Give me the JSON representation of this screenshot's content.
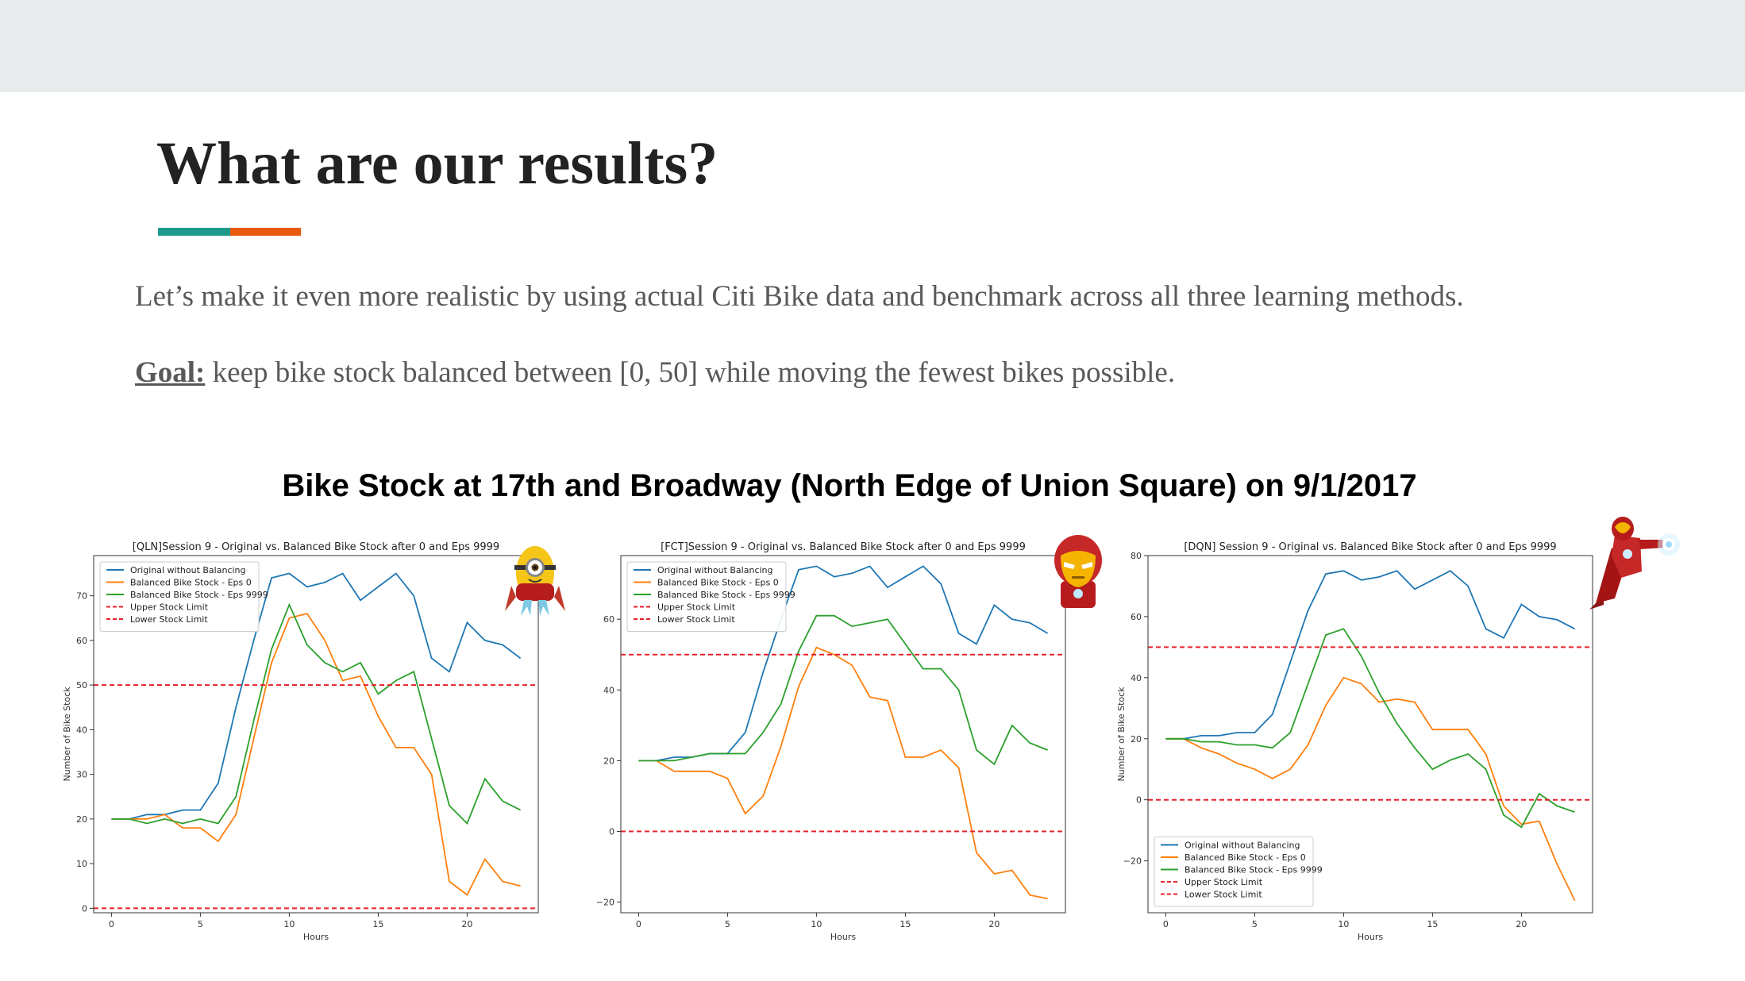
{
  "slide": {
    "title": "What are our results?",
    "intro": "Let’s make it even more realistic by using actual Citi Bike data and benchmark across all three learning methods.",
    "goal_label": "Goal:",
    "goal_text": " keep bike stock balanced between [0, 50] while moving the fewest bikes possible.",
    "chart_heading": "Bike Stock at 17th and Broadway (North Edge of Union Square) on 9/1/2017",
    "accent_colors": [
      "#1c9a8c",
      "#e8590c"
    ]
  },
  "mascots": [
    "minion-icon",
    "iron-man-head-icon",
    "iron-man-flying-icon"
  ],
  "chart_data": [
    {
      "type": "line",
      "title": "[QLN]Session 9 - Original vs. Balanced Bike Stock after 0 and Eps 9999",
      "xlabel": "Hours",
      "ylabel": "Number of Bike Stock",
      "xlim": [
        -1,
        24
      ],
      "ylim": [
        -1,
        79
      ],
      "xticks": [
        0,
        5,
        10,
        15,
        20
      ],
      "yticks": [
        0,
        10,
        20,
        30,
        40,
        50,
        60,
        70
      ],
      "legend": "upper-left",
      "x": [
        0,
        1,
        2,
        3,
        4,
        5,
        6,
        7,
        8,
        9,
        10,
        11,
        12,
        13,
        14,
        15,
        16,
        17,
        18,
        19,
        20,
        21,
        22,
        23
      ],
      "series": [
        {
          "name": "Original without Balancing",
          "color": "#1f77b4",
          "style": "solid",
          "values": [
            20,
            20,
            21,
            21,
            22,
            22,
            28,
            45,
            60,
            74,
            75,
            72,
            73,
            75,
            69,
            72,
            75,
            70,
            56,
            53,
            64,
            60,
            59,
            56
          ]
        },
        {
          "name": "Balanced Bike Stock - Eps 0",
          "color": "#ff7f0e",
          "style": "solid",
          "values": [
            20,
            20,
            20,
            21,
            18,
            18,
            15,
            21,
            38,
            55,
            65,
            66,
            60,
            51,
            52,
            43,
            36,
            36,
            30,
            6,
            3,
            11,
            6,
            5
          ]
        },
        {
          "name": "Balanced Bike Stock - Eps 9999",
          "color": "#2ca02c",
          "style": "solid",
          "values": [
            20,
            20,
            19,
            20,
            19,
            20,
            19,
            25,
            42,
            58,
            68,
            59,
            55,
            53,
            55,
            48,
            51,
            53,
            38,
            23,
            19,
            29,
            24,
            22
          ]
        },
        {
          "name": "Upper Stock Limit",
          "color": "#e8202a",
          "style": "dashed",
          "hline": 50
        },
        {
          "name": "Lower Stock Limit",
          "color": "#e8202a",
          "style": "dashed",
          "hline": 0
        }
      ]
    },
    {
      "type": "line",
      "title": "[FCT]Session 9 - Original vs. Balanced Bike Stock after 0 and Eps 9999",
      "xlabel": "Hours",
      "ylabel": "",
      "xlim": [
        -1,
        24
      ],
      "ylim": [
        -23,
        78
      ],
      "xticks": [
        0,
        5,
        10,
        15,
        20
      ],
      "yticks": [
        -20,
        0,
        20,
        40,
        60
      ],
      "legend": "upper-left",
      "x": [
        0,
        1,
        2,
        3,
        4,
        5,
        6,
        7,
        8,
        9,
        10,
        11,
        12,
        13,
        14,
        15,
        16,
        17,
        18,
        19,
        20,
        21,
        22,
        23
      ],
      "series": [
        {
          "name": "Original without Balancing",
          "color": "#1f77b4",
          "style": "solid",
          "values": [
            20,
            20,
            21,
            21,
            22,
            22,
            28,
            45,
            60,
            74,
            75,
            72,
            73,
            75,
            69,
            72,
            75,
            70,
            56,
            53,
            64,
            60,
            59,
            56
          ]
        },
        {
          "name": "Balanced Bike Stock - Eps 0",
          "color": "#ff7f0e",
          "style": "solid",
          "values": [
            20,
            20,
            17,
            17,
            17,
            15,
            5,
            10,
            24,
            41,
            52,
            50,
            47,
            38,
            37,
            21,
            21,
            23,
            18,
            -6,
            -12,
            -11,
            -18,
            -19
          ]
        },
        {
          "name": "Balanced Bike Stock - Eps 9999",
          "color": "#2ca02c",
          "style": "solid",
          "values": [
            20,
            20,
            20,
            21,
            22,
            22,
            22,
            28,
            36,
            51,
            61,
            61,
            58,
            59,
            60,
            53,
            46,
            46,
            40,
            23,
            19,
            30,
            25,
            23
          ]
        },
        {
          "name": "Upper Stock Limit",
          "color": "#e8202a",
          "style": "dashed",
          "hline": 50
        },
        {
          "name": "Lower Stock Limit",
          "color": "#e8202a",
          "style": "dashed",
          "hline": 0
        }
      ]
    },
    {
      "type": "line",
      "title": "[DQN] Session 9 - Original vs. Balanced Bike Stock after 0 and Eps 9999",
      "xlabel": "Hours",
      "ylabel": "Number of Bike Stock",
      "xlim": [
        -1,
        24
      ],
      "ylim": [
        -37,
        80
      ],
      "xticks": [
        0,
        5,
        10,
        15,
        20
      ],
      "yticks": [
        -20,
        0,
        20,
        40,
        60,
        80
      ],
      "legend": "lower-left",
      "x": [
        0,
        1,
        2,
        3,
        4,
        5,
        6,
        7,
        8,
        9,
        10,
        11,
        12,
        13,
        14,
        15,
        16,
        17,
        18,
        19,
        20,
        21,
        22,
        23
      ],
      "series": [
        {
          "name": "Original without Balancing",
          "color": "#1f77b4",
          "style": "solid",
          "values": [
            20,
            20,
            21,
            21,
            22,
            22,
            28,
            45,
            62,
            74,
            75,
            72,
            73,
            75,
            69,
            72,
            75,
            70,
            56,
            53,
            64,
            60,
            59,
            56
          ]
        },
        {
          "name": "Balanced Bike Stock - Eps 0",
          "color": "#ff7f0e",
          "style": "solid",
          "values": [
            20,
            20,
            17,
            15,
            12,
            10,
            7,
            10,
            18,
            31,
            40,
            38,
            32,
            33,
            32,
            23,
            23,
            23,
            15,
            -2,
            -8,
            -7,
            -21,
            -33
          ]
        },
        {
          "name": "Balanced Bike Stock - Eps 9999",
          "color": "#2ca02c",
          "style": "solid",
          "values": [
            20,
            20,
            19,
            19,
            18,
            18,
            17,
            22,
            38,
            54,
            56,
            47,
            35,
            25,
            17,
            10,
            13,
            15,
            10,
            -5,
            -9,
            2,
            -2,
            -4
          ]
        },
        {
          "name": "Upper Stock Limit",
          "color": "#e8202a",
          "style": "dashed",
          "hline": 50
        },
        {
          "name": "Lower Stock Limit",
          "color": "#e8202a",
          "style": "dashed",
          "hline": 0
        }
      ]
    }
  ]
}
